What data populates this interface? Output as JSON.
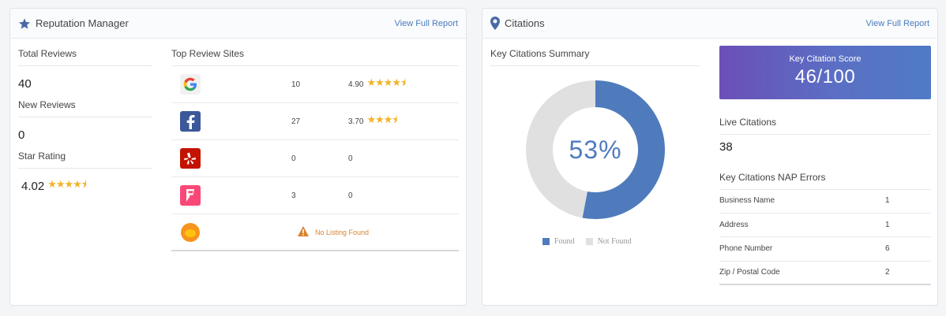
{
  "reputation": {
    "title": "Reputation Manager",
    "view_link": "View Full Report",
    "total_reviews_label": "Total Reviews",
    "total_reviews_value": "40",
    "new_reviews_label": "New Reviews",
    "new_reviews_value": "0",
    "star_rating_label": "Star Rating",
    "star_rating_value": "4.02",
    "star_rating_stars": "★★★★⯨",
    "sites_title": "Top Review Sites",
    "sites": [
      {
        "name": "google-logo",
        "count": "10",
        "rating": "4.90",
        "stars": "★★★★⯨"
      },
      {
        "name": "facebook-logo",
        "count": "27",
        "rating": "3.70",
        "stars": "★★★⯨"
      },
      {
        "name": "yelp-logo",
        "count": "0",
        "rating": "0",
        "stars": ""
      },
      {
        "name": "foursquare-logo",
        "count": "3",
        "rating": "0",
        "stars": ""
      },
      {
        "name": "other-logo",
        "no_listing": "No Listing Found"
      }
    ]
  },
  "citations": {
    "title": "Citations",
    "view_link": "View Full Report",
    "summary_title": "Key Citations Summary",
    "percent_label": "53%",
    "score_label": "Key Citation Score",
    "score_value": "46/100",
    "live_label": "Live Citations",
    "live_value": "38",
    "nap_title": "Key Citations NAP Errors",
    "nap_rows": [
      {
        "label": "Business Name",
        "value": "1"
      },
      {
        "label": "Address",
        "value": "1"
      },
      {
        "label": "Phone Number",
        "value": "6"
      },
      {
        "label": "Zip / Postal Code",
        "value": "2"
      }
    ]
  },
  "chart_data": {
    "type": "pie",
    "categories": [
      "Found",
      "Not Found"
    ],
    "values": [
      53,
      47
    ],
    "colors": [
      "#4f7bbd",
      "#e0e0e0"
    ],
    "legend_position": "bottom"
  }
}
